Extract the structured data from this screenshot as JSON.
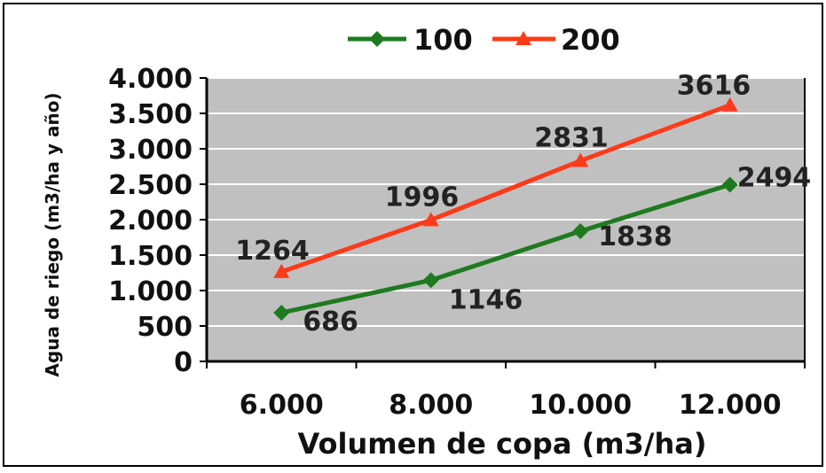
{
  "chart_data": {
    "type": "line",
    "title": "",
    "xlabel": "Volumen de copa (m3/ha)",
    "ylabel": "Agua de riego (m3/ha y año)",
    "x": [
      6000,
      8000,
      10000,
      12000
    ],
    "x_tick_labels": [
      "6.000",
      "8.000",
      "10.000",
      "12.000"
    ],
    "xlim": [
      5000,
      13000
    ],
    "ylim": [
      0,
      4000
    ],
    "y_ticks": [
      0,
      500,
      1000,
      1500,
      2000,
      2500,
      3000,
      3500,
      4000
    ],
    "y_tick_labels": [
      "0",
      "500",
      "1.000",
      "1.500",
      "2.000",
      "2.500",
      "3.000",
      "3.500",
      "4.000"
    ],
    "grid": true,
    "legend_position": "top-center",
    "plot_background": "#c0c0c0",
    "series": [
      {
        "name": "100",
        "values": [
          686,
          1146,
          1838,
          2494
        ],
        "data_labels": [
          "686",
          "1146",
          "1838",
          "2494"
        ],
        "color": "#1f7a1f",
        "marker": "diamond"
      },
      {
        "name": "200",
        "values": [
          1264,
          1996,
          2831,
          3616
        ],
        "data_labels": [
          "1264",
          "1996",
          "2831",
          "3616"
        ],
        "color": "#ff3a1a",
        "marker": "triangle"
      }
    ]
  }
}
